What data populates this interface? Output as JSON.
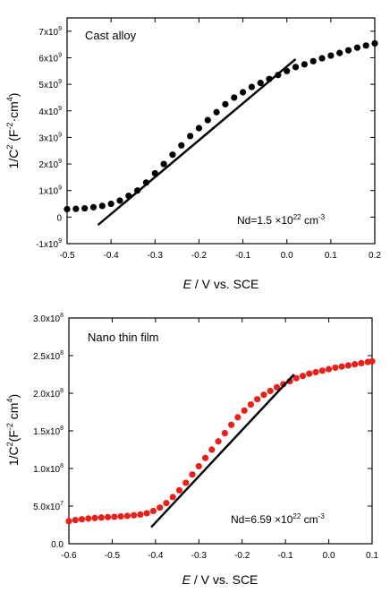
{
  "chart_data": [
    {
      "type": "scatter",
      "panel_label": "Cast alloy",
      "annotation": {
        "base": "Nd=1.5 ×10",
        "exp": "22",
        "unit": " cm",
        "unit_exp": "-3"
      },
      "xlabel": {
        "italic": "E",
        "rest": " / V vs. SCE"
      },
      "ylabel": {
        "p1": "1/C",
        "sup1": "2",
        "p2": " (F",
        "sup2": "-2",
        "p3": "·cm",
        "sup3": "4",
        "p4": ")"
      },
      "xlim": [
        -0.5,
        0.2
      ],
      "ylim": [
        -1000000000,
        7500000000
      ],
      "xticks": [
        -0.5,
        -0.4,
        -0.3,
        -0.2,
        -0.1,
        0.0,
        0.1,
        0.2
      ],
      "xtick_labels": [
        "-0.5",
        "-0.4",
        "-0.3",
        "-0.2",
        "-0.1",
        "0.0",
        "0.1",
        "0.2"
      ],
      "yticks": [
        {
          "v": -1000000000,
          "m": "-1x10",
          "e": "9"
        },
        {
          "v": 0,
          "m": "0",
          "e": ""
        },
        {
          "v": 1000000000,
          "m": "1x10",
          "e": "9"
        },
        {
          "v": 2000000000,
          "m": "2x10",
          "e": "9"
        },
        {
          "v": 3000000000,
          "m": "3x10",
          "e": "9"
        },
        {
          "v": 4000000000,
          "m": "4x10",
          "e": "9"
        },
        {
          "v": 5000000000,
          "m": "5x10",
          "e": "9"
        },
        {
          "v": 6000000000,
          "m": "6x10",
          "e": "9"
        },
        {
          "v": 7000000000,
          "m": "7x10",
          "e": "9"
        }
      ],
      "marker_color": "#000000",
      "x": [
        -0.5,
        -0.48,
        -0.46,
        -0.44,
        -0.42,
        -0.4,
        -0.38,
        -0.36,
        -0.34,
        -0.32,
        -0.3,
        -0.28,
        -0.26,
        -0.24,
        -0.22,
        -0.2,
        -0.18,
        -0.16,
        -0.14,
        -0.12,
        -0.1,
        -0.08,
        -0.06,
        -0.04,
        -0.02,
        0.0,
        0.02,
        0.04,
        0.06,
        0.08,
        0.1,
        0.12,
        0.14,
        0.16,
        0.18,
        0.2
      ],
      "y": [
        300000000,
        310000000,
        330000000,
        370000000,
        420000000,
        500000000,
        620000000,
        800000000,
        1000000000,
        1300000000,
        1650000000,
        2000000000,
        2350000000,
        2700000000,
        3050000000,
        3350000000,
        3650000000,
        3950000000,
        4250000000,
        4500000000,
        4700000000,
        4900000000,
        5050000000,
        5200000000,
        5350000000,
        5500000000,
        5650000000,
        5750000000,
        5870000000,
        5980000000,
        6080000000,
        6180000000,
        6280000000,
        6380000000,
        6460000000,
        6540000000
      ],
      "fit_line": {
        "x": [
          -0.43,
          0.02
        ],
        "y": [
          -300000000,
          5950000000
        ],
        "color": "#000000"
      }
    },
    {
      "type": "scatter",
      "panel_label": "Nano thin film",
      "annotation": {
        "base": "Nd=6.59 ×10",
        "exp": "22",
        "unit": " cm",
        "unit_exp": "-3"
      },
      "xlabel": {
        "italic": "E",
        "rest": " / V vs. SCE"
      },
      "ylabel": {
        "p1": "1/C",
        "sup1": "2",
        "p2": "(F",
        "sup2": "-2",
        "p3": " cm",
        "sup3": "4",
        "p4": ")"
      },
      "xlim": [
        -0.6,
        0.1
      ],
      "ylim": [
        0,
        300000000
      ],
      "xticks": [
        -0.6,
        -0.5,
        -0.4,
        -0.3,
        -0.2,
        -0.1,
        0.0,
        0.1
      ],
      "xtick_labels": [
        "-0.6",
        "-0.5",
        "-0.4",
        "-0.3",
        "-0.2",
        "-0.1",
        "0.0",
        "0.1"
      ],
      "yticks": [
        {
          "v": 0,
          "m": "0.0",
          "e": ""
        },
        {
          "v": 50000000,
          "m": "5.0x10",
          "e": "7"
        },
        {
          "v": 100000000,
          "m": "1.0x10",
          "e": "8"
        },
        {
          "v": 150000000,
          "m": "1.5x10",
          "e": "8"
        },
        {
          "v": 200000000,
          "m": "2.0x10",
          "e": "8"
        },
        {
          "v": 250000000,
          "m": "2.5x10",
          "e": "8"
        },
        {
          "v": 300000000,
          "m": "3.0x10",
          "e": "8"
        }
      ],
      "marker_color": "#e8201c",
      "x": [
        -0.6,
        -0.585,
        -0.57,
        -0.555,
        -0.54,
        -0.525,
        -0.51,
        -0.495,
        -0.48,
        -0.465,
        -0.45,
        -0.435,
        -0.42,
        -0.405,
        -0.39,
        -0.375,
        -0.36,
        -0.345,
        -0.33,
        -0.315,
        -0.3,
        -0.285,
        -0.27,
        -0.255,
        -0.24,
        -0.225,
        -0.21,
        -0.195,
        -0.18,
        -0.165,
        -0.15,
        -0.135,
        -0.12,
        -0.105,
        -0.09,
        -0.075,
        -0.06,
        -0.045,
        -0.03,
        -0.015,
        0.0,
        0.015,
        0.03,
        0.045,
        0.06,
        0.075,
        0.09,
        0.1
      ],
      "y": [
        30000000,
        31500000,
        32500000,
        33500000,
        34200000,
        34800000,
        35300000,
        35800000,
        36300000,
        37000000,
        37800000,
        38800000,
        40500000,
        43500000,
        48000000,
        54000000,
        62000000,
        71000000,
        81000000,
        92000000,
        103000000,
        114000000,
        125000000,
        136000000,
        147000000,
        158000000,
        168000000,
        177000000,
        185000000,
        192000000,
        198000000,
        203000000,
        208000000,
        212000000,
        216000000,
        220000000,
        223000000,
        226000000,
        228000000,
        230000000,
        232000000,
        234000000,
        235500000,
        237000000,
        238500000,
        240000000,
        241500000,
        242500000
      ],
      "fit_line": {
        "x": [
          -0.41,
          -0.08
        ],
        "y": [
          22000000,
          225000000
        ],
        "color": "#000000"
      }
    }
  ]
}
